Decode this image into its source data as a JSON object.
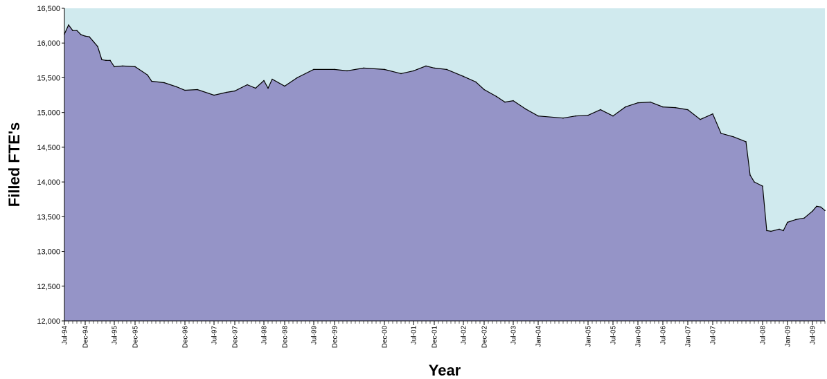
{
  "chart_data": {
    "type": "area",
    "xlabel": "Year",
    "ylabel": "Filled FTE's",
    "ylim": [
      12000,
      16500
    ],
    "y_ticks": [
      "12,000",
      "12,500",
      "13,000",
      "13,500",
      "14,000",
      "14,500",
      "15,000",
      "15,500",
      "16,000",
      "16,500"
    ],
    "x_ticks": [
      "Jul-94",
      "Dec-94",
      "Jul-95",
      "Dec-95",
      "Dec-96",
      "Jul-97",
      "Dec-97",
      "Jul-98",
      "Dec-98",
      "Jul-99",
      "Dec-99",
      "Dec-00",
      "Jul-01",
      "Dec-01",
      "Jul-02",
      "Dec-02",
      "Jul-03",
      "Jan-04",
      "Jan-05",
      "Jul-05",
      "Jan-06",
      "Jul-06",
      "Jan-07",
      "Jul-07",
      "Jul-08",
      "Jan-09",
      "Jul-09"
    ],
    "x_start": "Jul-94",
    "x_end": "Oct-09",
    "grid": false,
    "legend": "none",
    "colors": {
      "fill": "#9594c7",
      "plot_background": "#d0eaee",
      "line": "#000000"
    },
    "points": [
      [
        "Jul-94",
        16130
      ],
      [
        "Aug-94",
        16260
      ],
      [
        "Sep-94",
        16180
      ],
      [
        "Oct-94",
        16180
      ],
      [
        "Nov-94",
        16120
      ],
      [
        "Dec-94",
        16100
      ],
      [
        "Jan-95",
        16090
      ],
      [
        "Feb-95",
        16020
      ],
      [
        "Mar-95",
        15950
      ],
      [
        "Apr-95",
        15760
      ],
      [
        "May-95",
        15750
      ],
      [
        "Jun-95",
        15750
      ],
      [
        "Jul-95",
        15660
      ],
      [
        "Sep-95",
        15670
      ],
      [
        "Dec-95",
        15660
      ],
      [
        "Mar-96",
        15540
      ],
      [
        "Apr-96",
        15450
      ],
      [
        "Jul-96",
        15430
      ],
      [
        "Oct-96",
        15370
      ],
      [
        "Dec-96",
        15320
      ],
      [
        "Mar-97",
        15330
      ],
      [
        "Jul-97",
        15250
      ],
      [
        "Oct-97",
        15290
      ],
      [
        "Dec-97",
        15310
      ],
      [
        "Mar-98",
        15400
      ],
      [
        "May-98",
        15350
      ],
      [
        "Jul-98",
        15460
      ],
      [
        "Aug-98",
        15350
      ],
      [
        "Sep-98",
        15480
      ],
      [
        "Dec-98",
        15380
      ],
      [
        "Mar-99",
        15500
      ],
      [
        "Jul-99",
        15620
      ],
      [
        "Dec-99",
        15620
      ],
      [
        "Mar-00",
        15600
      ],
      [
        "Jul-00",
        15640
      ],
      [
        "Dec-00",
        15620
      ],
      [
        "Apr-01",
        15560
      ],
      [
        "Jul-01",
        15600
      ],
      [
        "Oct-01",
        15670
      ],
      [
        "Dec-01",
        15640
      ],
      [
        "Mar-02",
        15620
      ],
      [
        "Jul-02",
        15520
      ],
      [
        "Oct-02",
        15440
      ],
      [
        "Dec-02",
        15330
      ],
      [
        "Mar-03",
        15230
      ],
      [
        "May-03",
        15150
      ],
      [
        "Jul-03",
        15170
      ],
      [
        "Oct-03",
        15050
      ],
      [
        "Jan-04",
        14950
      ],
      [
        "Jul-04",
        14920
      ],
      [
        "Oct-04",
        14950
      ],
      [
        "Jan-05",
        14960
      ],
      [
        "Apr-05",
        15040
      ],
      [
        "Jul-05",
        14950
      ],
      [
        "Oct-05",
        15080
      ],
      [
        "Jan-06",
        15140
      ],
      [
        "Apr-06",
        15150
      ],
      [
        "Jul-06",
        15080
      ],
      [
        "Oct-06",
        15070
      ],
      [
        "Jan-07",
        15040
      ],
      [
        "Apr-07",
        14900
      ],
      [
        "Jul-07",
        14980
      ],
      [
        "Sep-07",
        14700
      ],
      [
        "Dec-07",
        14650
      ],
      [
        "Mar-08",
        14580
      ],
      [
        "Apr-08",
        14100
      ],
      [
        "May-08",
        14000
      ],
      [
        "Jul-08",
        13940
      ],
      [
        "Aug-08",
        13300
      ],
      [
        "Sep-08",
        13290
      ],
      [
        "Nov-08",
        13320
      ],
      [
        "Dec-08",
        13300
      ],
      [
        "Jan-09",
        13420
      ],
      [
        "Mar-09",
        13460
      ],
      [
        "May-09",
        13480
      ],
      [
        "Jul-09",
        13580
      ],
      [
        "Aug-09",
        13650
      ],
      [
        "Sep-09",
        13640
      ],
      [
        "Oct-09",
        13590
      ]
    ]
  }
}
